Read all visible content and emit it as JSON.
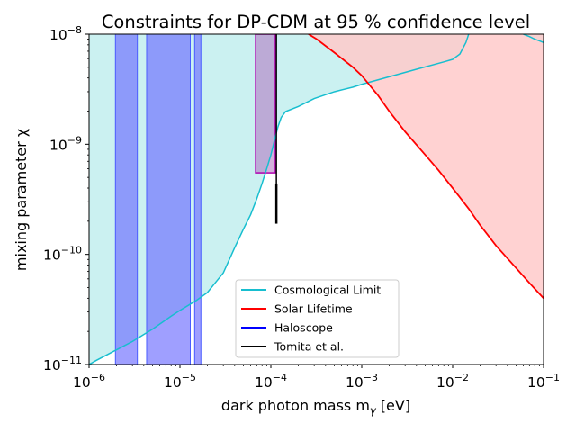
{
  "chart_data": {
    "type": "area",
    "title": "Constraints for DP-CDM at 95 % confidence level",
    "xlabel": "dark photon mass m",
    "xlabel_sub": "γ",
    "xlabel_unit": " [eV]",
    "ylabel": "mixing parameter χ",
    "xscale": "log",
    "yscale": "log",
    "xlim": [
      1e-06,
      0.1
    ],
    "ylim": [
      1e-11,
      1e-08
    ],
    "x_ticks": [
      {
        "value": 1e-06,
        "base": "10",
        "exp": "−6"
      },
      {
        "value": 1e-05,
        "base": "10",
        "exp": "−5"
      },
      {
        "value": 0.0001,
        "base": "10",
        "exp": "−4"
      },
      {
        "value": 0.001,
        "base": "10",
        "exp": "−3"
      },
      {
        "value": 0.01,
        "base": "10",
        "exp": "−2"
      },
      {
        "value": 0.1,
        "base": "10",
        "exp": "−1"
      }
    ],
    "y_ticks": [
      {
        "value": 1e-11,
        "base": "10",
        "exp": "−11"
      },
      {
        "value": 1e-10,
        "base": "10",
        "exp": "−10"
      },
      {
        "value": 1e-09,
        "base": "10",
        "exp": "−9"
      },
      {
        "value": 1e-08,
        "base": "10",
        "exp": "−8"
      }
    ],
    "legend_position": "lower-center",
    "grid": false,
    "series": [
      {
        "name": "Cosmological Limit",
        "color": "#17becf",
        "fill": "#cbf1f1",
        "points": [
          [
            1e-06,
            1e-11
          ],
          [
            1.2e-06,
            1.09e-11
          ],
          [
            1.5e-06,
            1.2e-11
          ],
          [
            2e-06,
            1.36e-11
          ],
          [
            3e-06,
            1.62e-11
          ],
          [
            5e-06,
            2.1e-11
          ],
          [
            8e-06,
            2.75e-11
          ],
          [
            1e-05,
            3.1e-11
          ],
          [
            1.5e-05,
            3.8e-11
          ],
          [
            2e-05,
            4.5e-11
          ],
          [
            3e-05,
            6.8e-11
          ],
          [
            4e-05,
            1.15e-10
          ],
          [
            5e-05,
            1.7e-10
          ],
          [
            6e-05,
            2.3e-10
          ],
          [
            7e-05,
            3.2e-10
          ],
          [
            8e-05,
            4.4e-10
          ],
          [
            9e-05,
            6e-10
          ],
          [
            0.0001,
            8e-10
          ],
          [
            0.00011,
            1.1e-09
          ],
          [
            0.00012,
            1.45e-09
          ],
          [
            0.00013,
            1.75e-09
          ],
          [
            0.000145,
            1.98e-09
          ],
          [
            0.0002,
            2.2e-09
          ],
          [
            0.0003,
            2.6e-09
          ],
          [
            0.0005,
            3e-09
          ],
          [
            0.0008,
            3.3e-09
          ],
          [
            0.001,
            3.5e-09
          ],
          [
            0.002,
            4.1e-09
          ],
          [
            0.004,
            4.8e-09
          ],
          [
            0.008,
            5.6e-09
          ],
          [
            0.01,
            5.9e-09
          ],
          [
            0.012,
            6.6e-09
          ],
          [
            0.014,
            8.4e-09
          ],
          [
            0.015,
            1e-08
          ]
        ],
        "upper_branch": [
          [
            0.06,
            1e-08
          ],
          [
            0.07,
            9.5e-09
          ],
          [
            0.08,
            9e-09
          ],
          [
            0.09,
            8.7e-09
          ],
          [
            0.1,
            8.4e-09
          ]
        ]
      },
      {
        "name": "Solar Lifetime",
        "color": "#ff0000",
        "fill": "#ffcaca",
        "points": [
          [
            0.00026,
            1e-08
          ],
          [
            0.00032,
            9e-09
          ],
          [
            0.0005,
            6.8e-09
          ],
          [
            0.0008,
            5e-09
          ],
          [
            0.001,
            4.2e-09
          ],
          [
            0.0015,
            2.8e-09
          ],
          [
            0.002,
            2e-09
          ],
          [
            0.003,
            1.3e-09
          ],
          [
            0.005,
            8e-10
          ],
          [
            0.007,
            5.8e-10
          ],
          [
            0.01,
            4e-10
          ],
          [
            0.015,
            2.6e-10
          ],
          [
            0.02,
            1.85e-10
          ],
          [
            0.03,
            1.2e-10
          ],
          [
            0.05,
            7.5e-11
          ],
          [
            0.07,
            5.5e-11
          ],
          [
            0.1,
            4e-11
          ]
        ]
      },
      {
        "name": "Haloscope",
        "color": "#0000ff",
        "excluded_bands": [
          {
            "x_min": 1.95e-06,
            "x_max": 3.4e-06,
            "y_max": 1e-08
          },
          {
            "x_min": 4.3e-06,
            "x_max": 1.3e-05,
            "y_max": 1e-08
          },
          {
            "x_min": 1.45e-05,
            "x_max": 1.7e-05,
            "y_max": 1e-08
          }
        ],
        "excluded_box": {
          "x_min": 6.8e-05,
          "x_max": 0.000112,
          "y_min": 5.5e-10,
          "y_max": 1e-08
        }
      },
      {
        "name": "Tomita et al.",
        "color": "#000000",
        "lines": [
          {
            "x": 0.000115,
            "y_min": 1.9e-10,
            "y_max": 4.4e-10
          },
          {
            "x": 0.000115,
            "y_min": 4.4e-10,
            "y_max": 1e-08
          }
        ]
      }
    ]
  }
}
